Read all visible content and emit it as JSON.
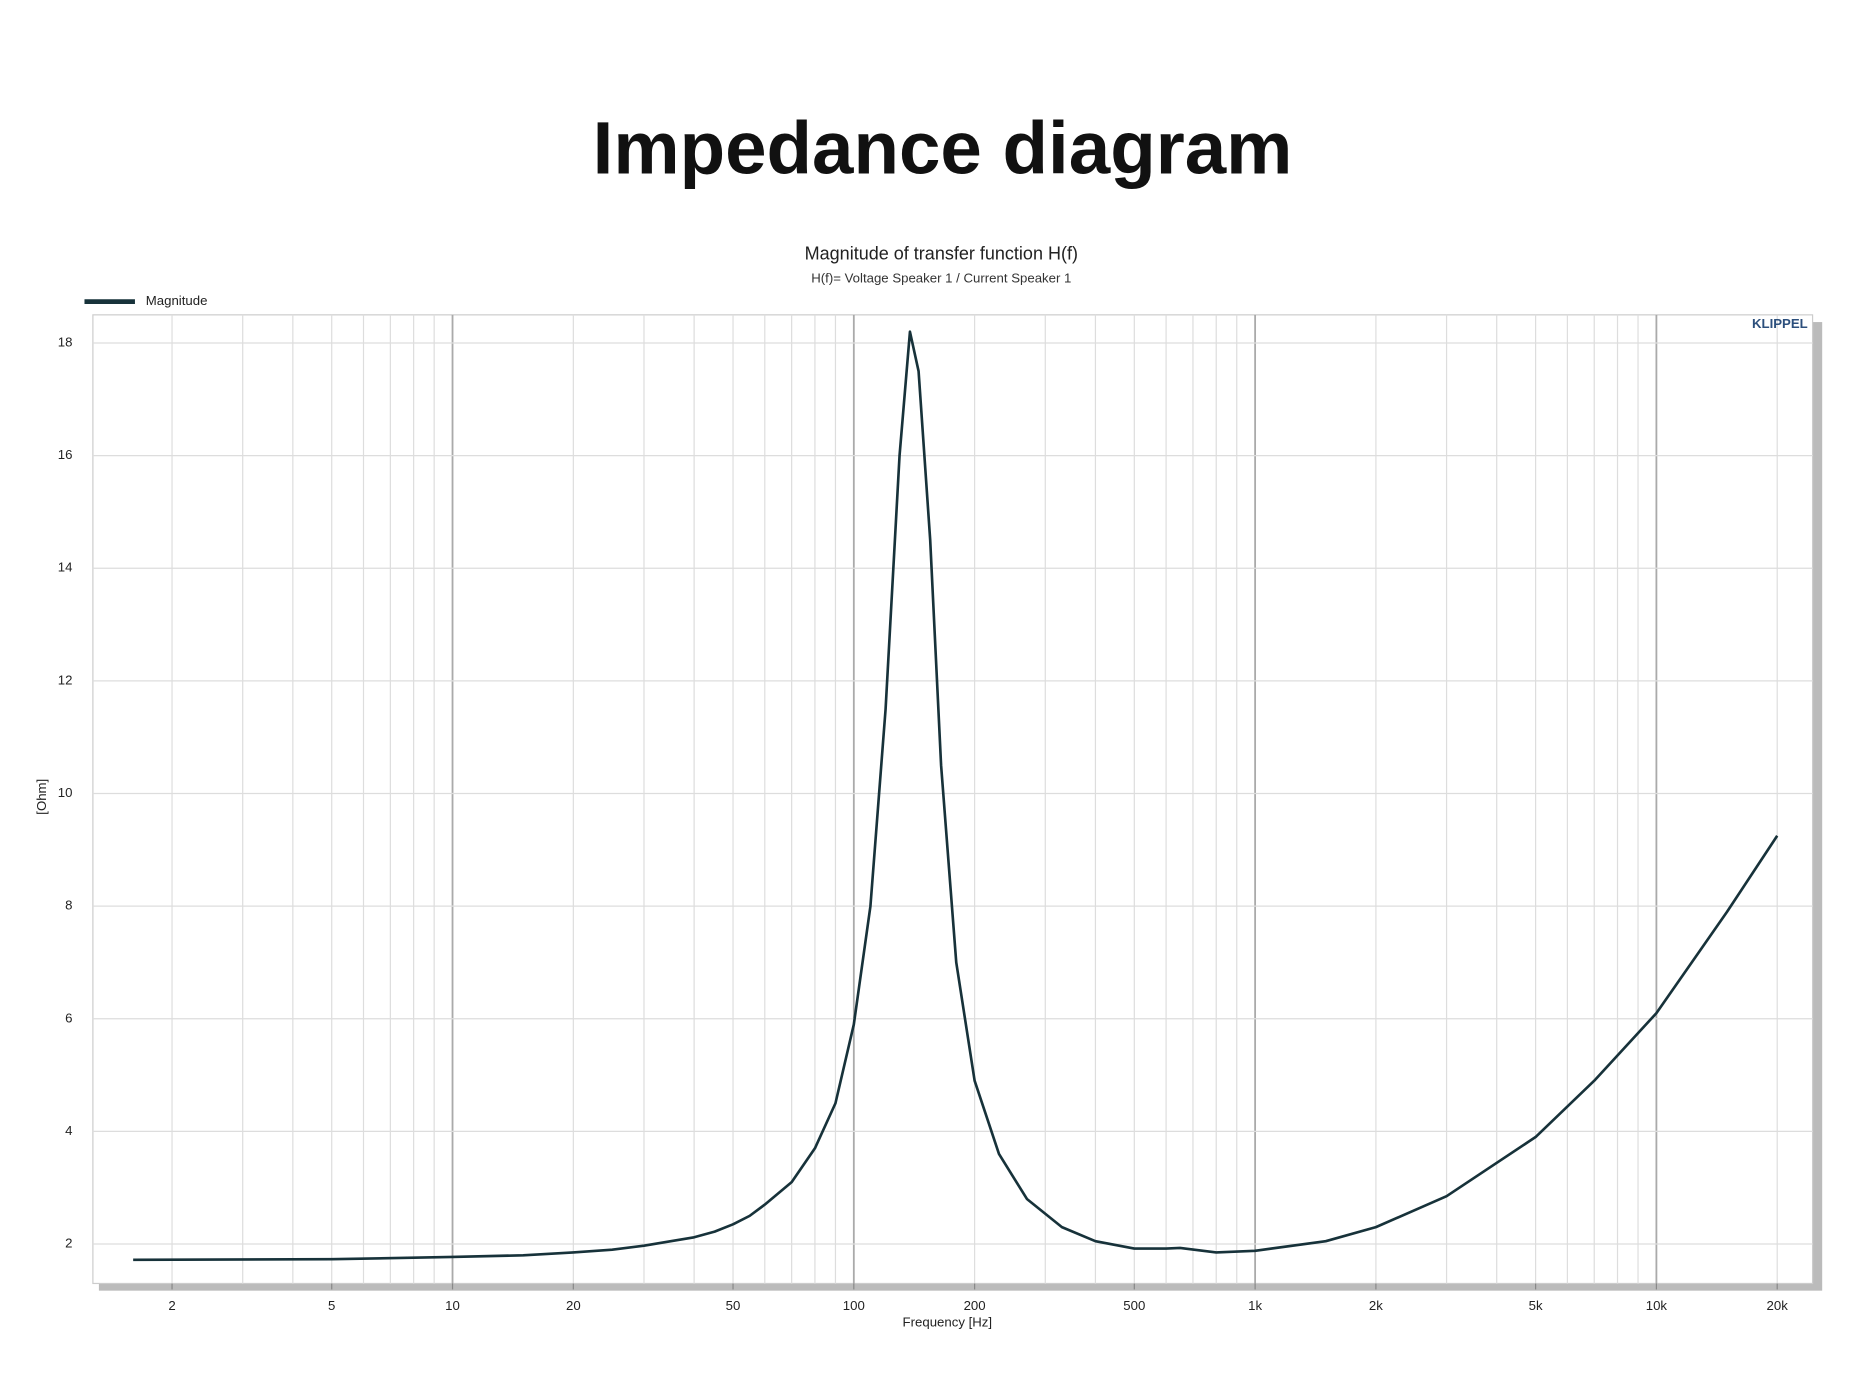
{
  "page_title": "Impedance diagram",
  "chart_data": {
    "type": "line",
    "title": "Magnitude of transfer function H(f)",
    "subtitle": "H(f)= Voltage Speaker 1 / Current Speaker 1",
    "xlabel": "Frequency [Hz]",
    "ylabel": "[Ohm]",
    "watermark": "KLIPPEL",
    "xscale": "log",
    "grid": true,
    "legend": "top-left",
    "xlim": [
      1.27,
      24500
    ],
    "ylim": [
      1.3,
      18.5
    ],
    "xticks": [
      2,
      5,
      10,
      20,
      50,
      100,
      200,
      500,
      {
        "value": 1000,
        "label": "1k"
      },
      {
        "value": 2000,
        "label": "2k"
      },
      {
        "value": 5000,
        "label": "5k"
      },
      {
        "value": 10000,
        "label": "10k"
      },
      {
        "value": 20000,
        "label": "20k"
      }
    ],
    "x_grid": [
      2,
      3,
      4,
      5,
      6,
      7,
      8,
      9,
      10,
      20,
      30,
      40,
      50,
      60,
      70,
      80,
      90,
      100,
      200,
      300,
      400,
      500,
      600,
      700,
      800,
      900,
      1000,
      2000,
      3000,
      4000,
      5000,
      6000,
      7000,
      8000,
      9000,
      10000,
      20000
    ],
    "x_major_grid": [
      10,
      100,
      1000,
      10000
    ],
    "yticks": [
      2,
      4,
      6,
      8,
      10,
      12,
      14,
      16,
      18
    ],
    "x": [
      1.6,
      5,
      10,
      15,
      20,
      25,
      30,
      35,
      40,
      45,
      50,
      55,
      60,
      70,
      80,
      90,
      100,
      110,
      120,
      130,
      138,
      145,
      155,
      165,
      180,
      200,
      230,
      270,
      330,
      400,
      500,
      600,
      650,
      800,
      1000,
      1500,
      2000,
      3000,
      5000,
      7000,
      10000,
      15000,
      20000
    ],
    "series": [
      {
        "name": "Magnitude",
        "color": "#17323a",
        "values": [
          1.72,
          1.73,
          1.77,
          1.8,
          1.85,
          1.9,
          1.97,
          2.05,
          2.12,
          2.22,
          2.35,
          2.5,
          2.7,
          3.1,
          3.7,
          4.5,
          5.9,
          8.0,
          11.5,
          16.0,
          18.2,
          17.5,
          14.5,
          10.5,
          7.0,
          4.9,
          3.6,
          2.8,
          2.3,
          2.05,
          1.92,
          1.92,
          1.93,
          1.85,
          1.88,
          2.05,
          2.3,
          2.85,
          3.9,
          4.9,
          6.1,
          7.9,
          9.25
        ]
      }
    ]
  }
}
